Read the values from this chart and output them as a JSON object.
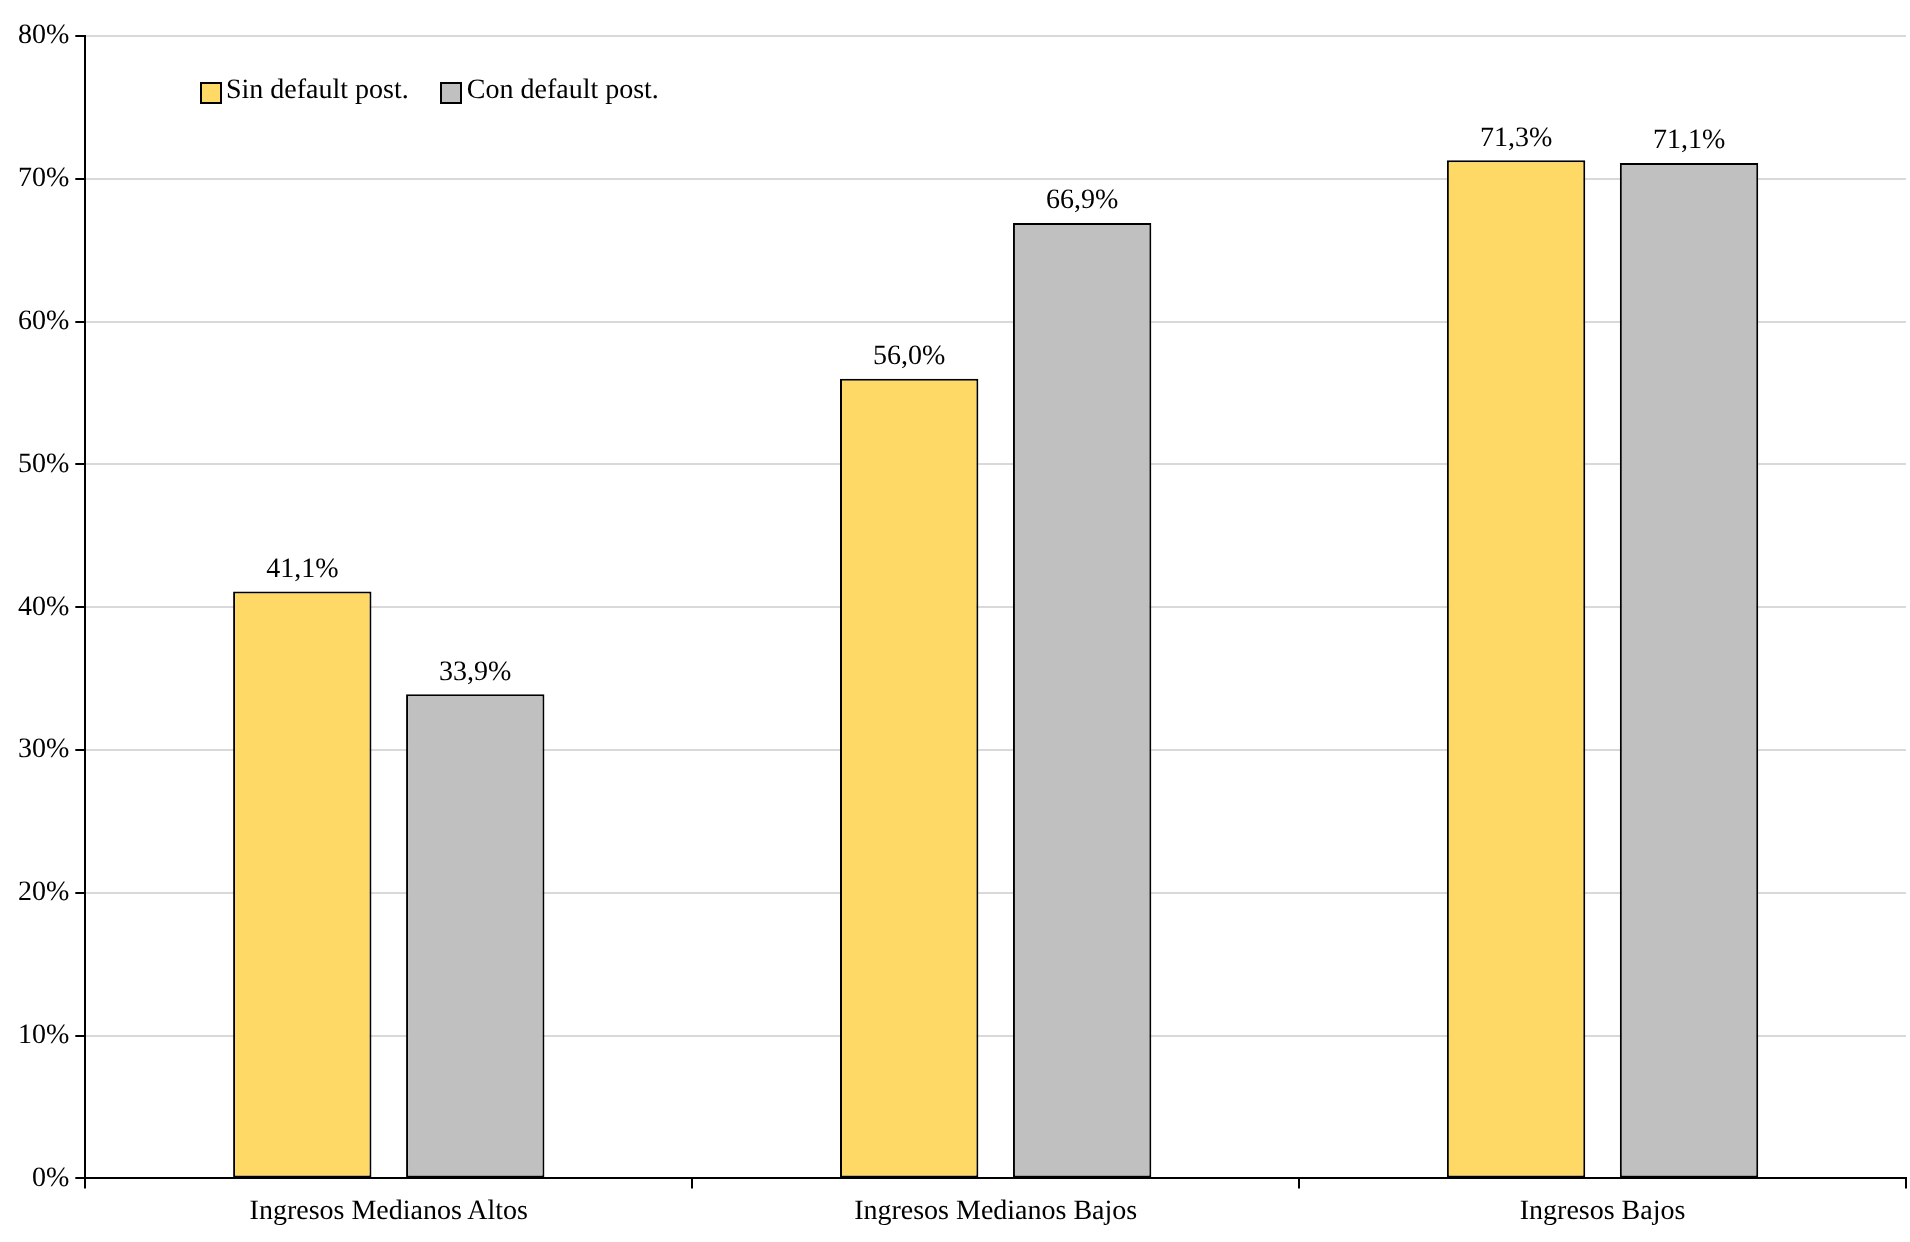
{
  "chart_data": {
    "type": "bar",
    "categories": [
      "Ingresos Medianos Altos",
      "Ingresos Medianos Bajos",
      "Ingresos Bajos"
    ],
    "series": [
      {
        "name": "Sin default post.",
        "color": "#ffd966",
        "values": [
          41.1,
          56.0,
          71.3
        ],
        "value_labels": [
          "41,1%",
          "56,0%",
          "71,3%"
        ]
      },
      {
        "name": "Con default post.",
        "color": "#c0c0c0",
        "values": [
          33.9,
          66.9,
          71.1
        ],
        "value_labels": [
          "33,9%",
          "66,9%",
          "71,1%"
        ]
      }
    ],
    "ylim": [
      0,
      80
    ],
    "yticks": [
      {
        "value": 0,
        "label": "0%"
      },
      {
        "value": 10,
        "label": "10%"
      },
      {
        "value": 20,
        "label": "20%"
      },
      {
        "value": 30,
        "label": "30%"
      },
      {
        "value": 40,
        "label": "40%"
      },
      {
        "value": 50,
        "label": "50%"
      },
      {
        "value": 60,
        "label": "60%"
      },
      {
        "value": 70,
        "label": "70%"
      },
      {
        "value": 80,
        "label": "80%"
      }
    ],
    "grid": "y",
    "legend": "top left"
  }
}
